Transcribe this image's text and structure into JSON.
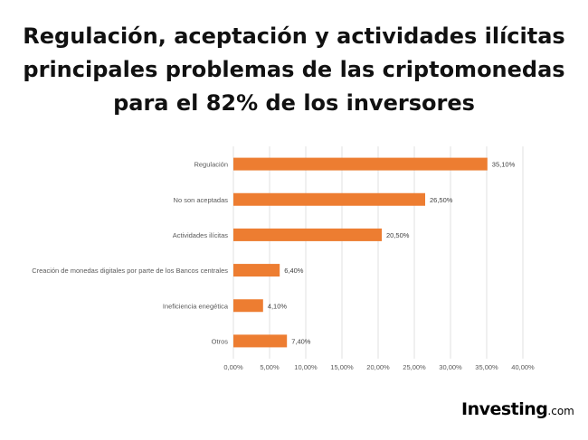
{
  "header": {
    "title_lines": [
      "Regulación, aceptación y actividades ilícitas",
      "principales problemas de las criptomonedas",
      "para el 82% de los inversores"
    ]
  },
  "logo": {
    "brand": "Investing",
    "suffix": ".com"
  },
  "chart_data": {
    "type": "bar",
    "orientation": "horizontal",
    "categories": [
      "Regulación",
      "No son aceptadas",
      "Actividades ilícitas",
      "Creación de monedas digitales por parte de los Bancos centrales",
      "Ineficiencia enegética",
      "Otros"
    ],
    "values": [
      35.1,
      26.5,
      20.5,
      6.4,
      4.1,
      7.4
    ],
    "value_labels": [
      "35,10%",
      "26,50%",
      "20,50%",
      "6,40%",
      "4,10%",
      "7,40%"
    ],
    "xlim": [
      0,
      40
    ],
    "xticks": [
      0,
      5,
      10,
      15,
      20,
      25,
      30,
      35,
      40
    ],
    "xtick_labels": [
      "0,00%",
      "5,00%",
      "10,00%",
      "15,00%",
      "20,00%",
      "25,00%",
      "30,00%",
      "35,00%",
      "40,00%"
    ],
    "bar_color": "#ED7D31",
    "grid": true
  }
}
